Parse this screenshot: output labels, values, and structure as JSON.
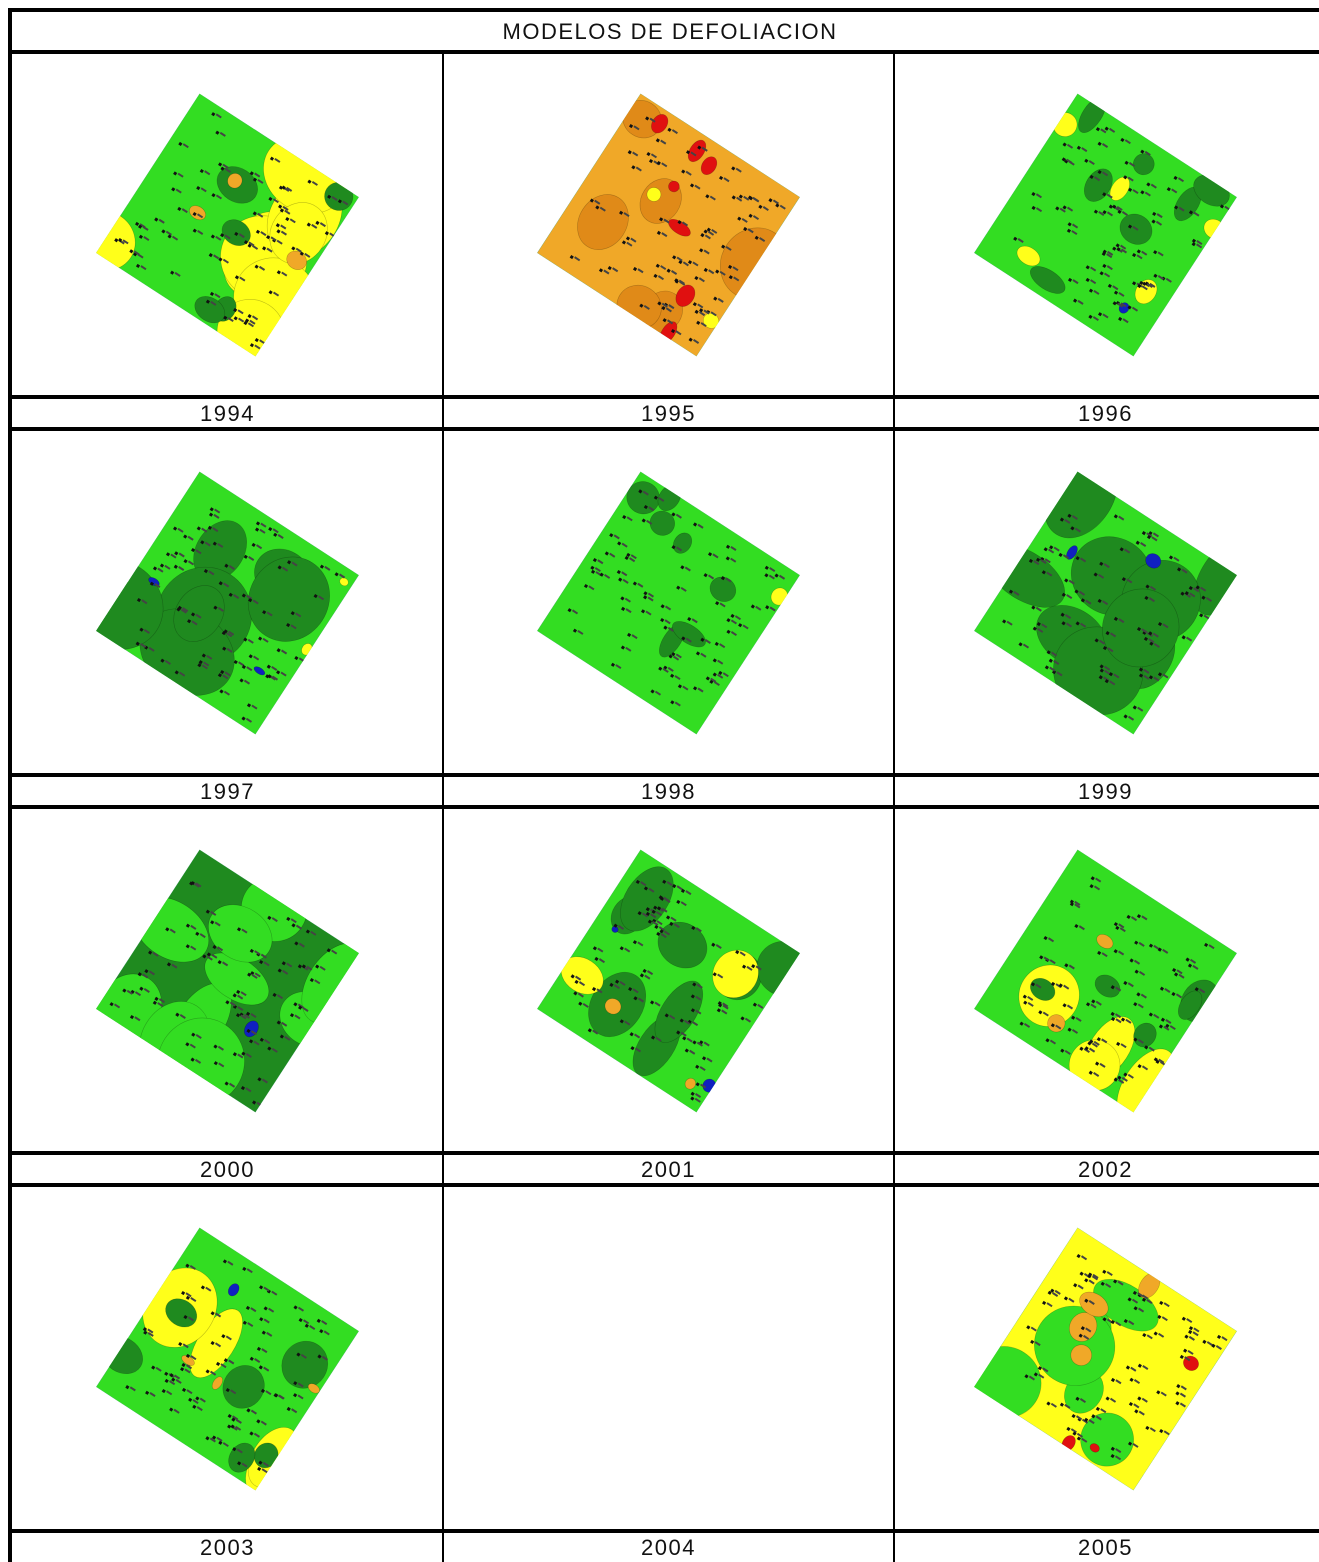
{
  "table": {
    "title": "MODELOS DE DEFOLIACION",
    "rows": [
      [
        "1994",
        "1995",
        "1996"
      ],
      [
        "1997",
        "1998",
        "1999"
      ],
      [
        "2000",
        "2001",
        "2002"
      ],
      [
        "2003",
        "2004",
        "2005"
      ]
    ]
  }
}
